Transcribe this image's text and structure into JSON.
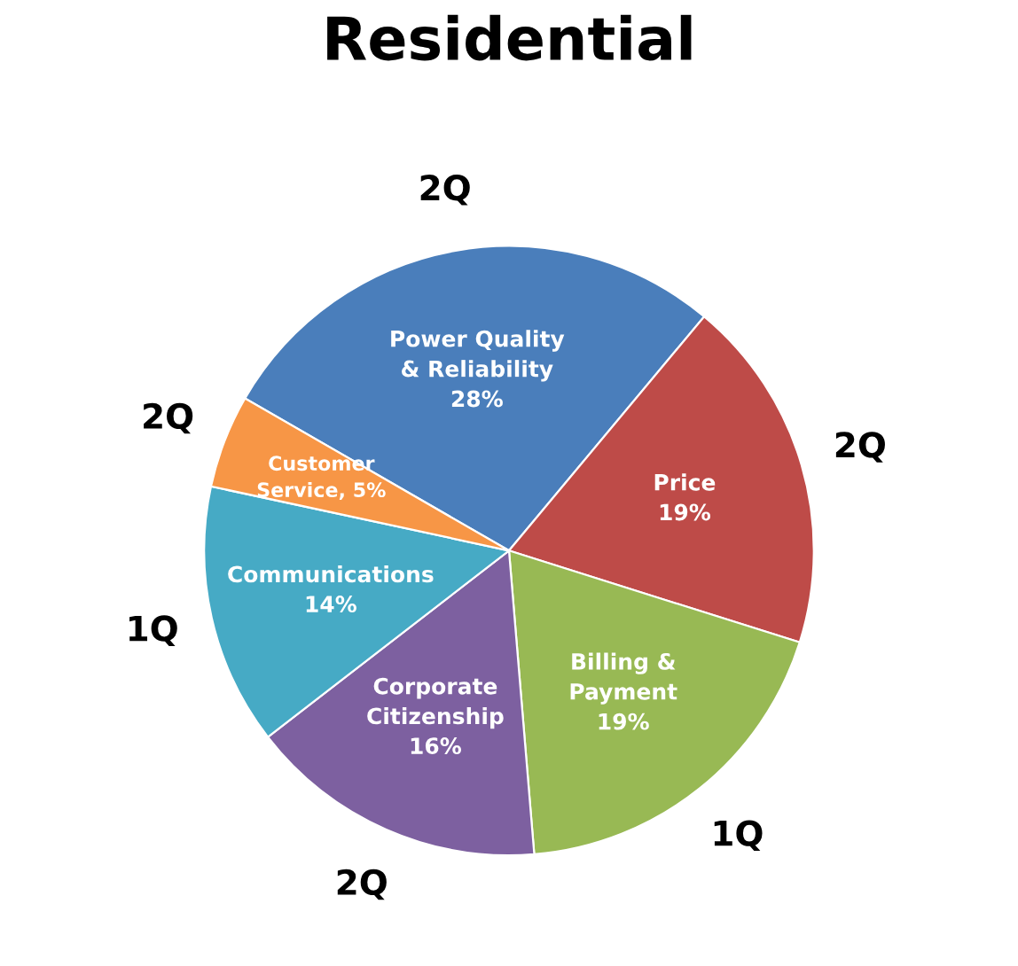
{
  "chart_data": {
    "type": "pie",
    "title": "Residential",
    "categories": [
      "Power Quality\n& Reliability",
      "Price",
      "Billing &\nPayment",
      "Corporate\nCitizenship",
      "Communications",
      "Customer\nService, 5%"
    ],
    "values": [
      28,
      19,
      19,
      16,
      14,
      5
    ],
    "value_labels": [
      "28%",
      "19%",
      "19%",
      "16%",
      "14%",
      null
    ],
    "colors": [
      "#4a7ebb",
      "#be4b48",
      "#98b954",
      "#7d60a0",
      "#46aac5",
      "#f79646"
    ],
    "annotations": [
      "2Q",
      "2Q",
      "1Q",
      "2Q",
      "1Q",
      "2Q"
    ],
    "legend": false
  }
}
